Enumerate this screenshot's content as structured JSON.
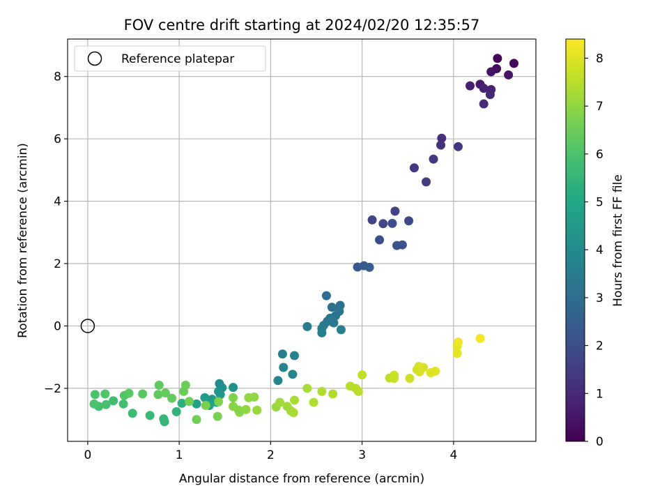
{
  "chart_data": {
    "type": "scatter",
    "title": "FOV centre drift starting at 2024/02/20 12:35:57",
    "xlabel": "Angular distance from reference (arcmin)",
    "ylabel": "Rotation from reference (arcmin)",
    "xlim": [
      -0.22,
      4.9
    ],
    "ylim": [
      -3.7,
      9.2
    ],
    "xticks": [
      0,
      1,
      2,
      3,
      4
    ],
    "yticks": [
      -2,
      0,
      2,
      4,
      6,
      8
    ],
    "xtick_labels": [
      "0",
      "1",
      "2",
      "3",
      "4"
    ],
    "ytick_labels": [
      "−2",
      "0",
      "2",
      "4",
      "6",
      "8"
    ],
    "grid": true,
    "legend": {
      "location": "upper-left",
      "entries": [
        {
          "label": "Reference platepar",
          "marker": "open-circle",
          "color": "#000000"
        }
      ]
    },
    "reference_point": {
      "x": 0.0,
      "y": 0.0
    },
    "colorbar": {
      "label": "Hours from first FF file",
      "colormap": "viridis",
      "range": [
        0,
        8.4
      ],
      "ticks": [
        0,
        1,
        2,
        3,
        4,
        5,
        6,
        7,
        8
      ],
      "tick_labels": [
        "0",
        "1",
        "2",
        "3",
        "4",
        "5",
        "6",
        "7",
        "8"
      ]
    },
    "series": [
      {
        "points": [
          {
            "x": 4.48,
            "y": 8.58,
            "c": 0.1
          },
          {
            "x": 4.66,
            "y": 8.42,
            "c": 0.2
          },
          {
            "x": 4.47,
            "y": 8.25,
            "c": 0.3
          },
          {
            "x": 4.41,
            "y": 8.15,
            "c": 0.4
          },
          {
            "x": 4.6,
            "y": 8.05,
            "c": 0.5
          },
          {
            "x": 4.29,
            "y": 7.75,
            "c": 0.6
          },
          {
            "x": 4.18,
            "y": 7.7,
            "c": 0.7
          },
          {
            "x": 4.33,
            "y": 7.62,
            "c": 0.8
          },
          {
            "x": 4.41,
            "y": 7.58,
            "c": 0.8
          },
          {
            "x": 4.4,
            "y": 7.42,
            "c": 0.9
          },
          {
            "x": 4.33,
            "y": 7.12,
            "c": 1.0
          },
          {
            "x": 3.87,
            "y": 6.02,
            "c": 1.1
          },
          {
            "x": 3.86,
            "y": 5.8,
            "c": 1.2
          },
          {
            "x": 4.05,
            "y": 5.75,
            "c": 1.3
          },
          {
            "x": 3.78,
            "y": 5.35,
            "c": 1.3
          },
          {
            "x": 3.57,
            "y": 5.07,
            "c": 1.4
          },
          {
            "x": 3.7,
            "y": 4.62,
            "c": 1.5
          },
          {
            "x": 3.36,
            "y": 3.68,
            "c": 1.6
          },
          {
            "x": 3.11,
            "y": 3.4,
            "c": 1.7
          },
          {
            "x": 3.51,
            "y": 3.37,
            "c": 1.8
          },
          {
            "x": 3.23,
            "y": 3.28,
            "c": 1.8
          },
          {
            "x": 3.33,
            "y": 3.29,
            "c": 1.9
          },
          {
            "x": 3.19,
            "y": 2.76,
            "c": 2.0
          },
          {
            "x": 3.44,
            "y": 2.6,
            "c": 2.1
          },
          {
            "x": 3.38,
            "y": 2.58,
            "c": 2.1
          },
          {
            "x": 2.95,
            "y": 1.89,
            "c": 2.3
          },
          {
            "x": 3.02,
            "y": 1.93,
            "c": 2.4
          },
          {
            "x": 3.08,
            "y": 1.88,
            "c": 2.5
          },
          {
            "x": 2.61,
            "y": 0.97,
            "c": 3.0
          },
          {
            "x": 2.76,
            "y": 0.66,
            "c": 3.1
          },
          {
            "x": 2.67,
            "y": 0.6,
            "c": 3.1
          },
          {
            "x": 2.75,
            "y": 0.47,
            "c": 3.2
          },
          {
            "x": 2.71,
            "y": 0.33,
            "c": 3.2
          },
          {
            "x": 2.65,
            "y": 0.25,
            "c": 3.3
          },
          {
            "x": 2.62,
            "y": 0.15,
            "c": 3.3
          },
          {
            "x": 2.69,
            "y": 0.1,
            "c": 3.4
          },
          {
            "x": 2.58,
            "y": 0.02,
            "c": 3.4
          },
          {
            "x": 2.4,
            "y": -0.02,
            "c": 3.5
          },
          {
            "x": 2.56,
            "y": -0.08,
            "c": 3.5
          },
          {
            "x": 2.77,
            "y": -0.12,
            "c": 3.6
          },
          {
            "x": 2.56,
            "y": -0.22,
            "c": 3.6
          },
          {
            "x": 2.13,
            "y": -0.9,
            "c": 3.6
          },
          {
            "x": 2.26,
            "y": -0.95,
            "c": 3.7
          },
          {
            "x": 2.14,
            "y": -1.33,
            "c": 3.7
          },
          {
            "x": 2.24,
            "y": -1.55,
            "c": 3.8
          },
          {
            "x": 2.08,
            "y": -1.75,
            "c": 3.8
          },
          {
            "x": 1.44,
            "y": -1.85,
            "c": 4.0
          },
          {
            "x": 1.47,
            "y": -1.98,
            "c": 4.1
          },
          {
            "x": 1.59,
            "y": -1.97,
            "c": 4.2
          },
          {
            "x": 1.43,
            "y": -2.1,
            "c": 4.3
          },
          {
            "x": 1.45,
            "y": -2.2,
            "c": 4.4
          },
          {
            "x": 1.36,
            "y": -2.35,
            "c": 4.5
          },
          {
            "x": 1.28,
            "y": -2.3,
            "c": 4.6
          },
          {
            "x": 1.41,
            "y": -2.45,
            "c": 4.7
          },
          {
            "x": 1.19,
            "y": -2.5,
            "c": 4.8
          },
          {
            "x": 1.33,
            "y": -2.55,
            "c": 4.9
          },
          {
            "x": 1.03,
            "y": -2.48,
            "c": 5.3
          },
          {
            "x": 0.97,
            "y": -2.75,
            "c": 5.4
          },
          {
            "x": 0.83,
            "y": -2.98,
            "c": 5.5
          },
          {
            "x": 0.84,
            "y": -3.07,
            "c": 5.5
          },
          {
            "x": 0.68,
            "y": -2.87,
            "c": 5.6
          },
          {
            "x": 0.49,
            "y": -2.8,
            "c": 5.7
          },
          {
            "x": 0.39,
            "y": -2.5,
            "c": 5.8
          },
          {
            "x": 0.28,
            "y": -2.4,
            "c": 5.8
          },
          {
            "x": 0.2,
            "y": -2.52,
            "c": 5.9
          },
          {
            "x": 0.12,
            "y": -2.58,
            "c": 5.9
          },
          {
            "x": 0.07,
            "y": -2.5,
            "c": 6.0
          },
          {
            "x": 0.08,
            "y": -2.2,
            "c": 6.0
          },
          {
            "x": 0.19,
            "y": -2.18,
            "c": 6.1
          },
          {
            "x": 0.4,
            "y": -2.23,
            "c": 6.1
          },
          {
            "x": 0.45,
            "y": -2.16,
            "c": 6.2
          },
          {
            "x": 0.6,
            "y": -2.18,
            "c": 6.2
          },
          {
            "x": 0.77,
            "y": -2.2,
            "c": 6.3
          },
          {
            "x": 0.78,
            "y": -1.9,
            "c": 6.3
          },
          {
            "x": 0.85,
            "y": -2.15,
            "c": 6.4
          },
          {
            "x": 0.92,
            "y": -2.32,
            "c": 6.4
          },
          {
            "x": 1.05,
            "y": -2.1,
            "c": 6.5
          },
          {
            "x": 1.07,
            "y": -1.9,
            "c": 6.5
          },
          {
            "x": 1.11,
            "y": -2.42,
            "c": 6.6
          },
          {
            "x": 1.19,
            "y": -3.0,
            "c": 6.6
          },
          {
            "x": 1.29,
            "y": -2.55,
            "c": 6.7
          },
          {
            "x": 1.42,
            "y": -2.9,
            "c": 6.7
          },
          {
            "x": 1.43,
            "y": -2.43,
            "c": 6.8
          },
          {
            "x": 1.59,
            "y": -2.3,
            "c": 6.8
          },
          {
            "x": 1.59,
            "y": -2.58,
            "c": 6.9
          },
          {
            "x": 1.65,
            "y": -2.7,
            "c": 6.9
          },
          {
            "x": 1.66,
            "y": -2.77,
            "c": 6.9
          },
          {
            "x": 1.73,
            "y": -2.68,
            "c": 7.0
          },
          {
            "x": 1.76,
            "y": -2.3,
            "c": 7.0
          },
          {
            "x": 1.82,
            "y": -2.28,
            "c": 7.0
          },
          {
            "x": 1.85,
            "y": -2.7,
            "c": 7.1
          },
          {
            "x": 2.06,
            "y": -2.6,
            "c": 7.1
          },
          {
            "x": 2.1,
            "y": -2.45,
            "c": 7.2
          },
          {
            "x": 2.18,
            "y": -2.58,
            "c": 7.2
          },
          {
            "x": 2.22,
            "y": -2.72,
            "c": 7.2
          },
          {
            "x": 2.25,
            "y": -2.78,
            "c": 7.3
          },
          {
            "x": 2.26,
            "y": -2.38,
            "c": 7.3
          },
          {
            "x": 2.4,
            "y": -2.0,
            "c": 7.3
          },
          {
            "x": 2.47,
            "y": -2.45,
            "c": 7.4
          },
          {
            "x": 2.56,
            "y": -2.1,
            "c": 7.4
          },
          {
            "x": 2.68,
            "y": -2.18,
            "c": 7.4
          },
          {
            "x": 2.87,
            "y": -1.93,
            "c": 7.5
          },
          {
            "x": 2.93,
            "y": -2.0,
            "c": 7.5
          },
          {
            "x": 2.96,
            "y": -2.1,
            "c": 7.5
          },
          {
            "x": 3.0,
            "y": -1.57,
            "c": 7.6
          },
          {
            "x": 3.3,
            "y": -1.67,
            "c": 7.6
          },
          {
            "x": 3.35,
            "y": -1.68,
            "c": 7.7
          },
          {
            "x": 3.35,
            "y": -1.58,
            "c": 7.7
          },
          {
            "x": 3.52,
            "y": -1.68,
            "c": 7.8
          },
          {
            "x": 3.6,
            "y": -1.4,
            "c": 7.8
          },
          {
            "x": 3.62,
            "y": -1.3,
            "c": 7.9
          },
          {
            "x": 3.63,
            "y": -1.47,
            "c": 7.9
          },
          {
            "x": 3.67,
            "y": -1.33,
            "c": 7.9
          },
          {
            "x": 3.75,
            "y": -1.5,
            "c": 8.0
          },
          {
            "x": 3.8,
            "y": -1.45,
            "c": 8.0
          },
          {
            "x": 4.04,
            "y": -0.88,
            "c": 8.1
          },
          {
            "x": 4.04,
            "y": -0.65,
            "c": 8.1
          },
          {
            "x": 4.05,
            "y": -0.52,
            "c": 8.2
          },
          {
            "x": 4.29,
            "y": -0.4,
            "c": 8.3
          }
        ]
      }
    ]
  }
}
